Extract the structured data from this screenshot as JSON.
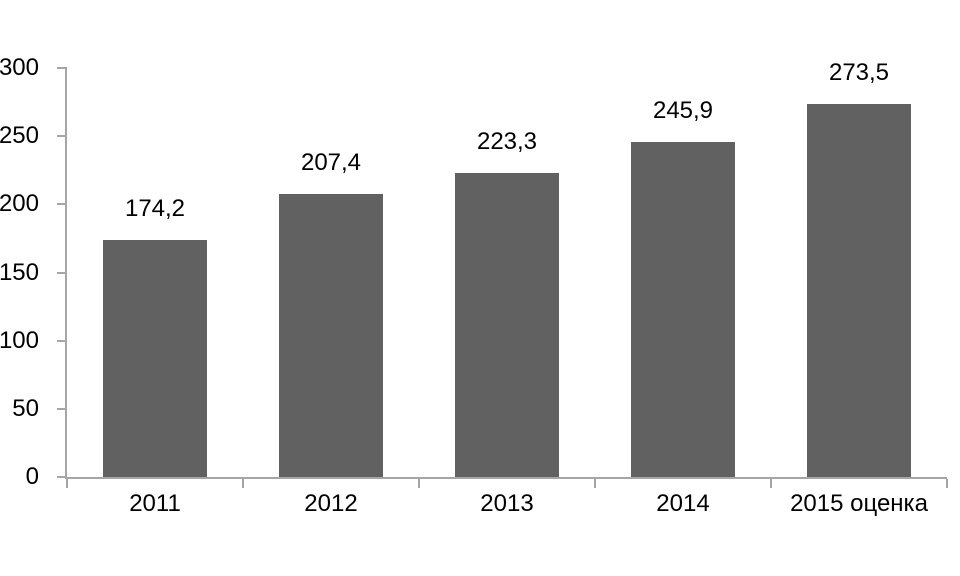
{
  "chart_data": {
    "type": "bar",
    "title": "",
    "xlabel": "",
    "ylabel": "",
    "categories": [
      "2011",
      "2012",
      "2013",
      "2014",
      "2015 оценка"
    ],
    "values": [
      174.2,
      207.4,
      223.3,
      245.9,
      273.5
    ],
    "value_labels": [
      "174,2",
      "207,4",
      "223,3",
      "245,9",
      "273,5"
    ],
    "ylim": [
      0,
      300
    ],
    "ytick_step": 50,
    "ytick_labels": [
      "0",
      "50",
      "100",
      "150",
      "200",
      "250",
      "300"
    ],
    "grid": false,
    "legend_position": "none",
    "colors": {
      "bar": "#616161",
      "axis": "#a6a6a6",
      "text": "#000000",
      "background": "#ffffff"
    }
  }
}
